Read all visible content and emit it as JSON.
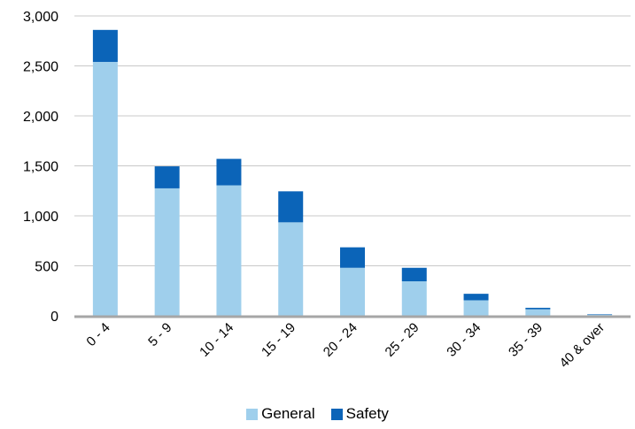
{
  "chart_data": {
    "type": "bar",
    "stacked": true,
    "categories": [
      "0 - 4",
      "5 - 9",
      "10 - 14",
      "15 - 19",
      "20 - 24",
      "25 - 29",
      "30 - 34",
      "35 - 39",
      "40 & over"
    ],
    "series": [
      {
        "name": "General",
        "color": "#9fcfec",
        "values": [
          2540,
          1275,
          1305,
          935,
          480,
          345,
          155,
          65,
          10
        ]
      },
      {
        "name": "Safety",
        "color": "#0b64b8",
        "values": [
          320,
          220,
          265,
          310,
          205,
          135,
          65,
          15,
          5
        ]
      }
    ],
    "y_ticks": [
      "0",
      "500",
      "1,000",
      "1,500",
      "2,000",
      "2,500",
      "3,000"
    ],
    "ylim": [
      0,
      3000
    ],
    "grid": true,
    "legend_position": "bottom",
    "gridline_color": "#c8c8c8",
    "axis_color": "#a6a6a6"
  }
}
